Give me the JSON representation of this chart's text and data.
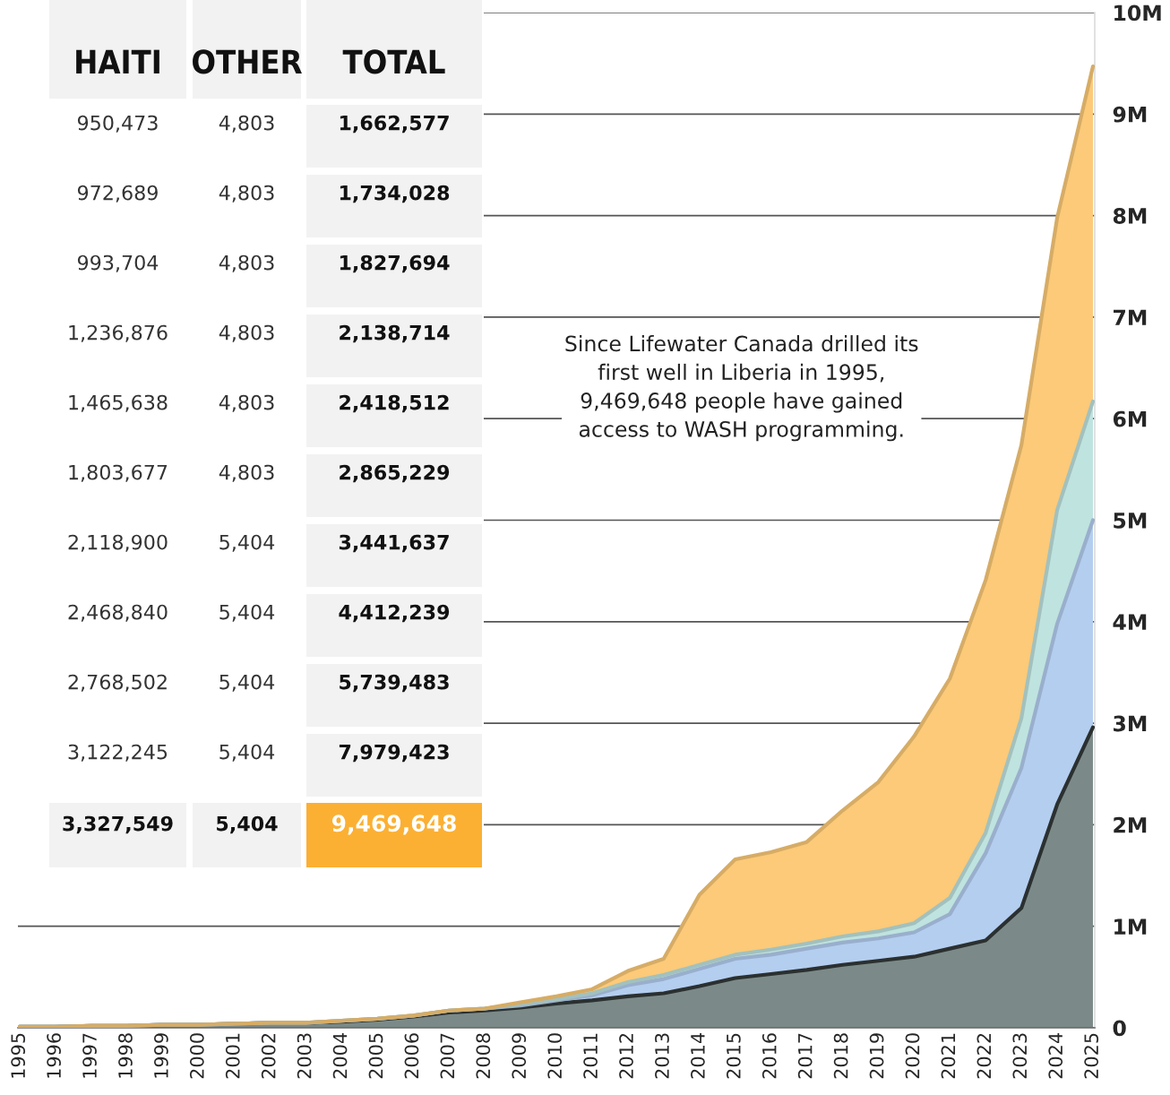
{
  "chart_data": [
    {
      "type": "other",
      "categories": [
        "HAITI",
        "OTHER",
        "TOTAL"
      ],
      "cell_labels": [
        [
          "950,473",
          "4,803",
          "1,662,577"
        ],
        [
          "972,689",
          "4,803",
          "1,734,028"
        ],
        [
          "993,704",
          "4,803",
          "1,827,694"
        ],
        [
          "1,236,876",
          "4,803",
          "2,138,714"
        ],
        [
          "1,465,638",
          "4,803",
          "2,418,512"
        ],
        [
          "1,803,677",
          "4,803",
          "2,865,229"
        ],
        [
          "2,118,900",
          "5,404",
          "3,441,637"
        ],
        [
          "2,468,840",
          "5,404",
          "4,412,239"
        ],
        [
          "2,768,502",
          "5,404",
          "5,739,483"
        ],
        [
          "3,122,245",
          "5,404",
          "7,979,423"
        ],
        [
          "3,327,549",
          "5,404",
          "9,469,648"
        ]
      ]
    },
    {
      "type": "area",
      "stacked": true,
      "categories": [
        "1995",
        "1996",
        "1997",
        "1998",
        "1999",
        "2000",
        "2001",
        "2002",
        "2003",
        "2004",
        "2005",
        "2006",
        "2007",
        "2008",
        "2009",
        "2010",
        "2011",
        "2012",
        "2013",
        "2014",
        "2015",
        "2016",
        "2017",
        "2018",
        "2019",
        "2020",
        "2021",
        "2022",
        "2023",
        "2024",
        "2025"
      ],
      "series": [
        {
          "color": "#7b8a88",
          "values": [
            0.01,
            0.01,
            0.02,
            0.02,
            0.03,
            0.03,
            0.04,
            0.05,
            0.05,
            0.06,
            0.08,
            0.11,
            0.15,
            0.17,
            0.2,
            0.24,
            0.27,
            0.31,
            0.34,
            0.41,
            0.49,
            0.53,
            0.57,
            0.62,
            0.66,
            0.7,
            0.78,
            0.86,
            1.18,
            2.2,
            2.96
          ]
        },
        {
          "color": "#b4cef0",
          "values": [
            0,
            0,
            0,
            0,
            0,
            0,
            0,
            0,
            0,
            0.01,
            0.01,
            0.01,
            0.02,
            0.02,
            0.02,
            0.03,
            0.05,
            0.11,
            0.14,
            0.17,
            0.19,
            0.19,
            0.21,
            0.22,
            0.22,
            0.24,
            0.34,
            0.86,
            1.38,
            1.78,
            2.04
          ]
        },
        {
          "color": "#bfe3df",
          "values": [
            0,
            0,
            0,
            0,
            0,
            0,
            0,
            0,
            0,
            0,
            0,
            0,
            0,
            0,
            0.01,
            0.01,
            0.02,
            0.03,
            0.04,
            0.04,
            0.04,
            0.05,
            0.05,
            0.06,
            0.07,
            0.09,
            0.16,
            0.2,
            0.49,
            1.12,
            1.17
          ]
        },
        {
          "color": "#fcca78",
          "values": [
            0,
            0,
            0,
            0,
            0,
            0,
            0,
            0,
            0,
            0,
            0,
            0,
            0,
            0,
            0.02,
            0.03,
            0.04,
            0.11,
            0.16,
            0.69,
            0.94,
            0.96,
            1.0,
            1.24,
            1.47,
            1.84,
            2.16,
            2.49,
            2.69,
            2.88,
            3.3
          ]
        }
      ],
      "ylim": [
        0,
        10
      ],
      "yticks": [
        0,
        {
          "value": 1,
          "label": "1M"
        },
        {
          "value": 2,
          "label": "2M"
        },
        {
          "value": 3,
          "label": "3M"
        },
        {
          "value": 4,
          "label": "4M"
        },
        {
          "value": 5,
          "label": "5M"
        },
        {
          "value": 6,
          "label": "6M"
        },
        {
          "value": 7,
          "label": "7M"
        },
        {
          "value": 8,
          "label": "8M"
        },
        {
          "value": 9,
          "label": "9M"
        },
        {
          "value": 10,
          "label": "10M"
        }
      ],
      "grid": "y",
      "annotations": [
        "Since Lifewater Canada drilled its\nfirst well in Liberia in 1995,\n9,469,648 people have gained\naccess to WASH programming."
      ]
    }
  ]
}
